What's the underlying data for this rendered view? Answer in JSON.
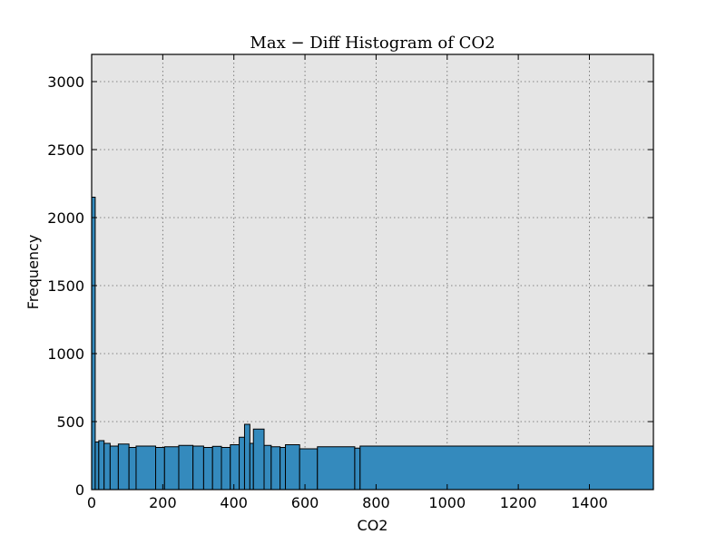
{
  "chart_data": {
    "type": "bar",
    "title": "Max − Diff Histogram of CO2",
    "xlabel": "CO2",
    "ylabel": "Frequency",
    "xlim": [
      0,
      1580
    ],
    "ylim": [
      0,
      3200
    ],
    "grid": true,
    "x_ticks": [
      "0",
      "200",
      "400",
      "600",
      "800",
      "1000",
      "1200",
      "1400"
    ],
    "x_tick_values": [
      0,
      200,
      400,
      600,
      800,
      1000,
      1200,
      1400
    ],
    "y_ticks": [
      "0",
      "500",
      "1000",
      "1500",
      "2000",
      "2500",
      "3000"
    ],
    "y_tick_values": [
      0,
      500,
      1000,
      1500,
      2000,
      2500,
      3000
    ],
    "bins": [
      {
        "x0": 0,
        "x1": 10,
        "value": 2150
      },
      {
        "x0": 10,
        "x1": 20,
        "value": 350
      },
      {
        "x0": 20,
        "x1": 35,
        "value": 360
      },
      {
        "x0": 35,
        "x1": 52,
        "value": 340
      },
      {
        "x0": 52,
        "x1": 75,
        "value": 320
      },
      {
        "x0": 75,
        "x1": 105,
        "value": 335
      },
      {
        "x0": 105,
        "x1": 125,
        "value": 310
      },
      {
        "x0": 125,
        "x1": 180,
        "value": 320
      },
      {
        "x0": 180,
        "x1": 205,
        "value": 310
      },
      {
        "x0": 205,
        "x1": 245,
        "value": 315
      },
      {
        "x0": 245,
        "x1": 285,
        "value": 325
      },
      {
        "x0": 285,
        "x1": 315,
        "value": 320
      },
      {
        "x0": 315,
        "x1": 340,
        "value": 310
      },
      {
        "x0": 340,
        "x1": 365,
        "value": 318
      },
      {
        "x0": 365,
        "x1": 390,
        "value": 310
      },
      {
        "x0": 390,
        "x1": 415,
        "value": 330
      },
      {
        "x0": 415,
        "x1": 430,
        "value": 385
      },
      {
        "x0": 430,
        "x1": 445,
        "value": 480
      },
      {
        "x0": 445,
        "x1": 455,
        "value": 340
      },
      {
        "x0": 455,
        "x1": 485,
        "value": 445
      },
      {
        "x0": 485,
        "x1": 505,
        "value": 325
      },
      {
        "x0": 505,
        "x1": 530,
        "value": 315
      },
      {
        "x0": 530,
        "x1": 545,
        "value": 310
      },
      {
        "x0": 545,
        "x1": 585,
        "value": 330
      },
      {
        "x0": 585,
        "x1": 635,
        "value": 300
      },
      {
        "x0": 635,
        "x1": 740,
        "value": 315
      },
      {
        "x0": 740,
        "x1": 755,
        "value": 305
      },
      {
        "x0": 755,
        "x1": 1580,
        "value": 320
      }
    ]
  },
  "colors": {
    "bar_fill": "#348abd",
    "bar_edge": "#000000",
    "plot_background": "#e5e5e5",
    "grid": "#666666"
  }
}
